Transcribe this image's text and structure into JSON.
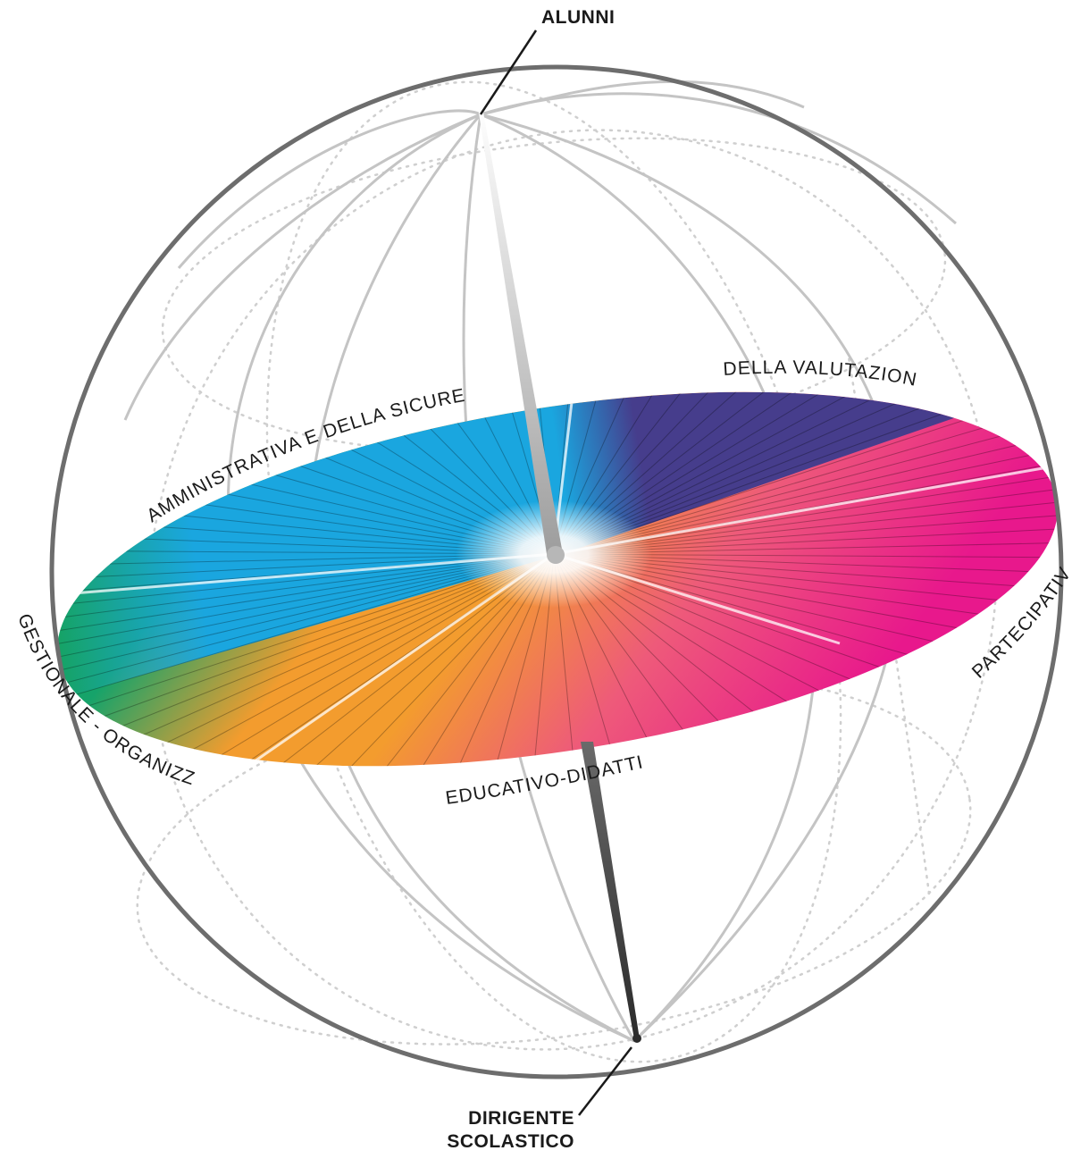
{
  "poles": {
    "top": "ALUNNI",
    "bottom_line1": "DIRIGENTE",
    "bottom_line2": "SCOLASTICO"
  },
  "areas": [
    {
      "label": "AMMINISTRATIVA E DELLA SICUREZZA",
      "color": "#1aa6df"
    },
    {
      "label": "DELLA VALUTAZIONE",
      "color": "#463d8c"
    },
    {
      "label": "PARTECIPATIVA",
      "color": "#e8188c"
    },
    {
      "label": "EDUCATIVO-DIDATTICA",
      "color": "#f39c2e"
    },
    {
      "label": "GESTIONALE - ORGANIZZATIVA",
      "color": "#16a356"
    }
  ],
  "colors": {
    "sphere_outline": "#6d6d6d",
    "meridians": "#c4c4c4",
    "dotted_grid": "#cfcfcf",
    "axis_dark": "#3b3b3b",
    "axis_light": "#bdbdbd"
  }
}
